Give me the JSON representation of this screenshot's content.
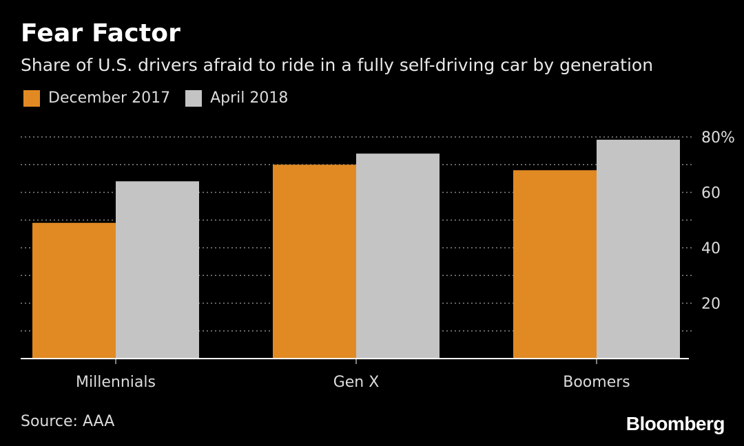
{
  "header": {
    "title": "Fear Factor",
    "subtitle": "Share of U.S. drivers afraid to ride in a fully self-driving car by generation"
  },
  "footer": {
    "source": "Source: AAA",
    "brand": "Bloomberg"
  },
  "colors": {
    "series1": "#e18a24",
    "series2": "#c4c4c4",
    "grid": "#8a8a8a",
    "axis": "#ffffff",
    "text": "#dcdcdc"
  },
  "chart_data": {
    "type": "bar",
    "title": "Fear Factor",
    "subtitle": "Share of U.S. drivers afraid to ride in a fully self-driving car by generation",
    "categories": [
      "Millennials",
      "Gen X",
      "Boomers"
    ],
    "series": [
      {
        "name": "December 2017",
        "values": [
          49,
          70,
          68
        ]
      },
      {
        "name": "April 2018",
        "values": [
          64,
          74,
          79
        ]
      }
    ],
    "ylim": [
      0,
      80
    ],
    "yticks": [
      20,
      40,
      60,
      80
    ],
    "ytick_labels": [
      "20",
      "40",
      "60",
      "80%"
    ],
    "xlabel": "",
    "ylabel": "",
    "legend_position": "top-left",
    "grid": true
  }
}
